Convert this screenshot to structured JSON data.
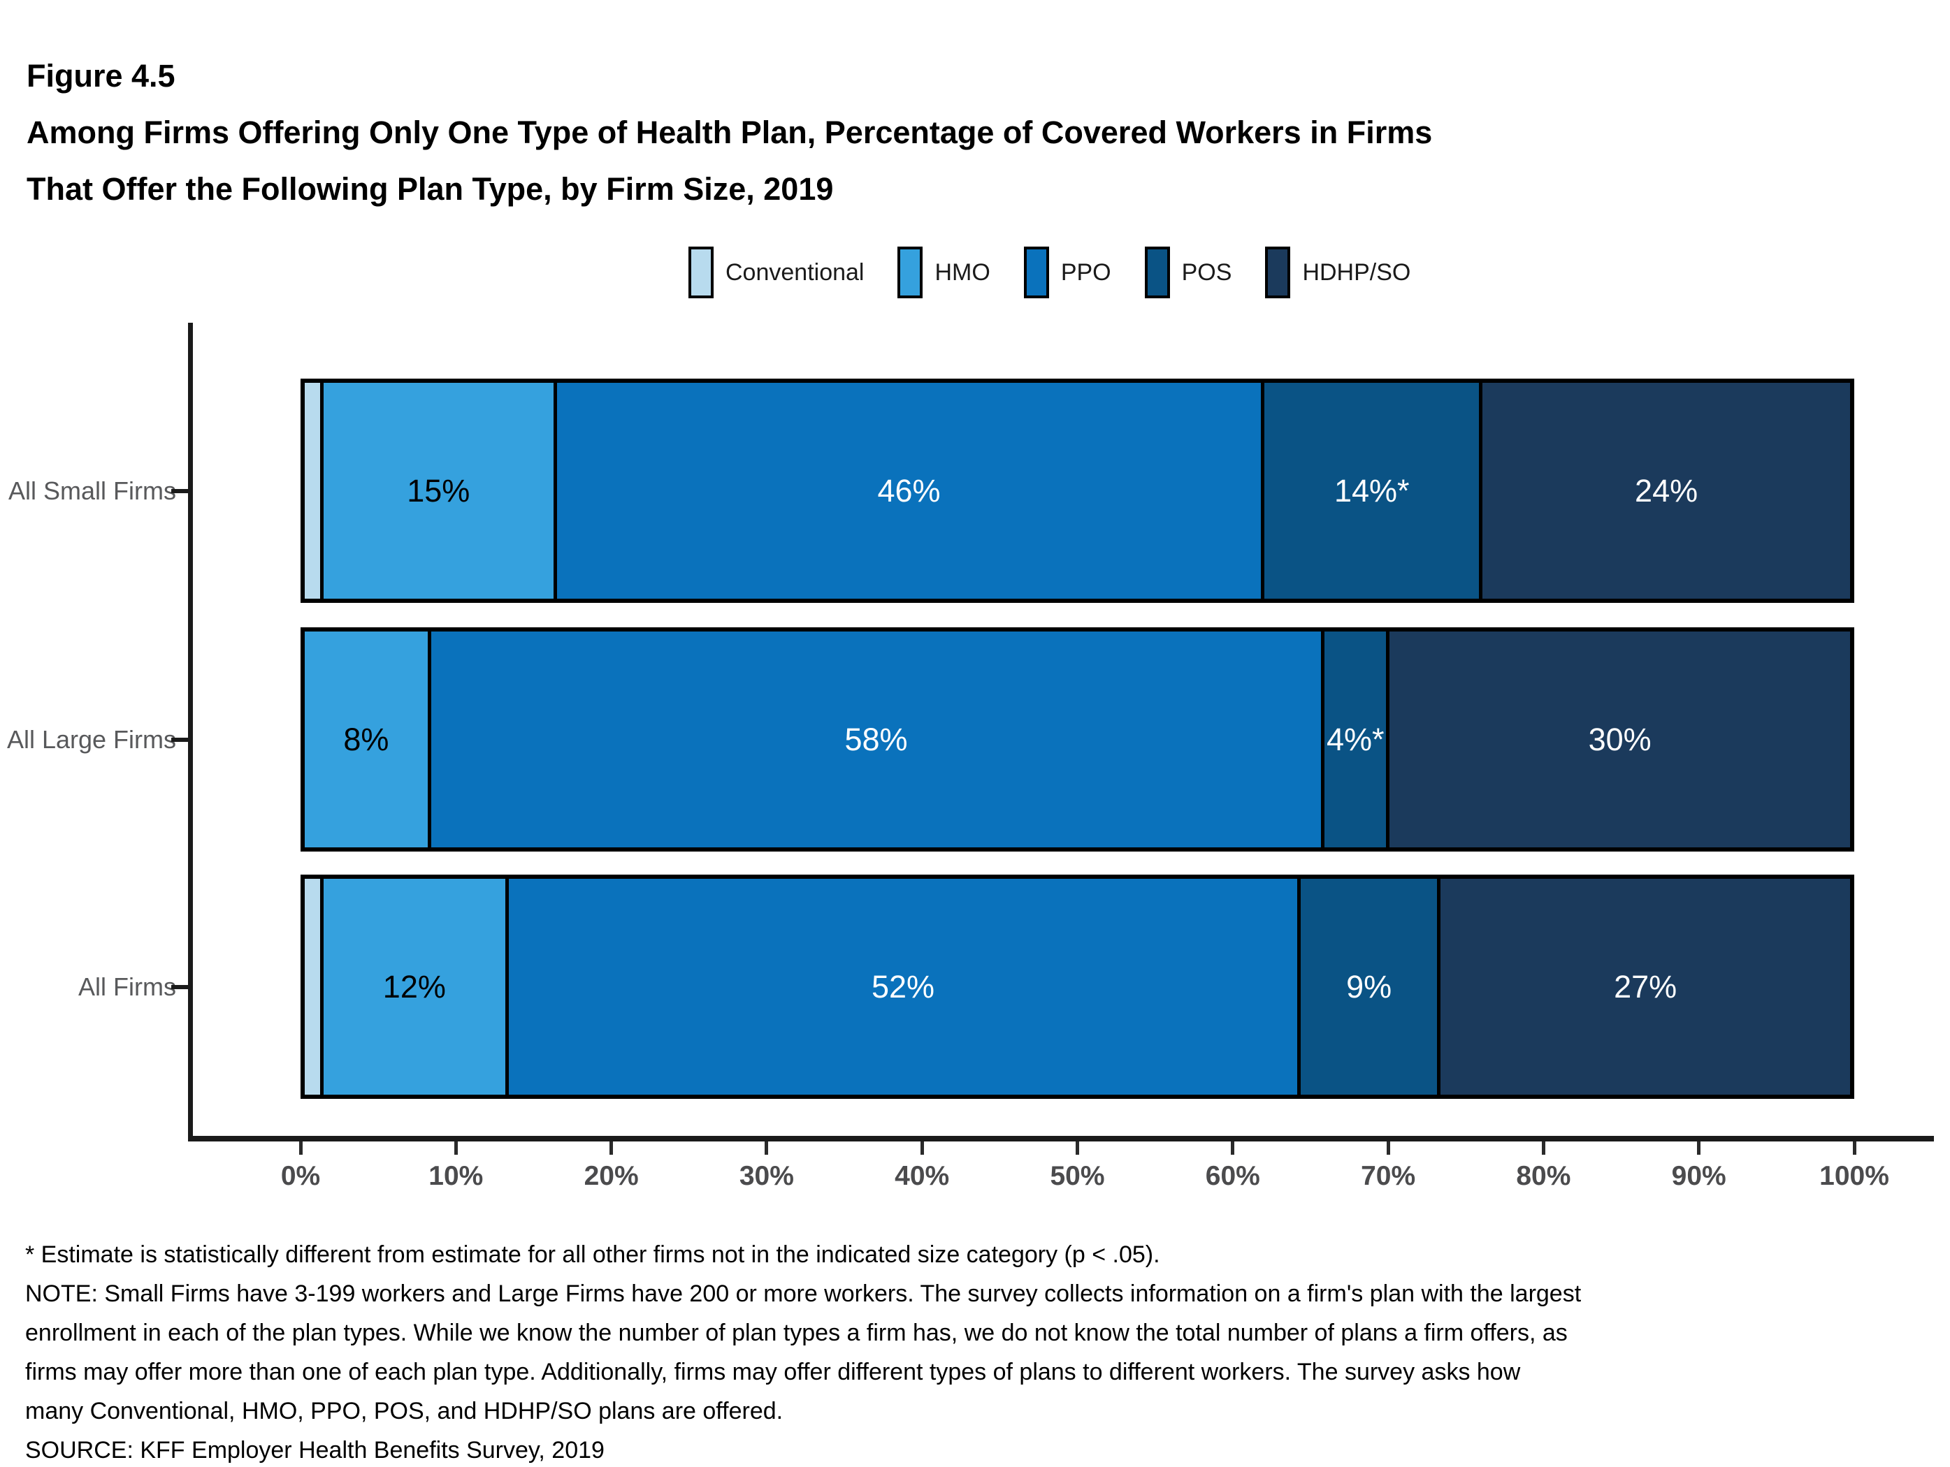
{
  "figure": {
    "number": "Figure 4.5",
    "title_line1": "Among Firms Offering Only One Type of Health Plan, Percentage of Covered Workers in Firms",
    "title_line2": "That Offer the Following Plan Type, by Firm Size, 2019"
  },
  "legend": [
    {
      "label": "Conventional",
      "color": "#B8DBEE"
    },
    {
      "label": "HMO",
      "color": "#35A1DE"
    },
    {
      "label": "PPO",
      "color": "#0A72BC"
    },
    {
      "label": "POS",
      "color": "#0A5385"
    },
    {
      "label": "HDHP/SO",
      "color": "#1B3A5C"
    }
  ],
  "chart_data": {
    "type": "bar",
    "orientation": "horizontal",
    "stacked": true,
    "grid": false,
    "legend_position": "top",
    "categories": [
      "All Small Firms",
      "All Large Firms",
      "All Firms"
    ],
    "series": [
      {
        "name": "Conventional",
        "color": "#B8DBEE",
        "label_color": "#000000",
        "values": [
          1,
          0,
          1
        ],
        "labels": [
          "",
          "",
          ""
        ]
      },
      {
        "name": "HMO",
        "color": "#35A1DE",
        "label_color": "#000000",
        "values": [
          15,
          8,
          12
        ],
        "labels": [
          "15%",
          "8%",
          "12%"
        ]
      },
      {
        "name": "PPO",
        "color": "#0A72BC",
        "label_color": "#ffffff",
        "values": [
          46,
          58,
          52
        ],
        "labels": [
          "46%",
          "58%",
          "52%"
        ]
      },
      {
        "name": "POS",
        "color": "#0A5385",
        "label_color": "#ffffff",
        "values": [
          14,
          4,
          9
        ],
        "labels": [
          "14%*",
          "4%*",
          "9%"
        ]
      },
      {
        "name": "HDHP/SO",
        "color": "#1B3A5C",
        "label_color": "#ffffff",
        "values": [
          24,
          30,
          27
        ],
        "labels": [
          "24%",
          "30%",
          "27%"
        ]
      }
    ],
    "x_axis": {
      "range": [
        0,
        100
      ],
      "tick_labels": [
        "0%",
        "10%",
        "20%",
        "30%",
        "40%",
        "50%",
        "60%",
        "70%",
        "80%",
        "90%",
        "100%"
      ]
    }
  },
  "footnotes": [
    "* Estimate is statistically different from estimate for all other firms not in the indicated size category (p < .05).",
    "NOTE: Small Firms have 3-199 workers and Large Firms have 200 or more workers. The survey collects information on a firm's plan with the largest",
    "enrollment in each of the plan types. While we know the number of plan types a firm has, we do not know the total number of plans a firm offers, as",
    "firms may offer more than one of each plan type. Additionally, firms may offer different types of plans to different workers. The survey asks how",
    "many Conventional, HMO, PPO, POS, and HDHP/SO plans are offered.",
    "SOURCE: KFF Employer Health Benefits Survey, 2019"
  ]
}
